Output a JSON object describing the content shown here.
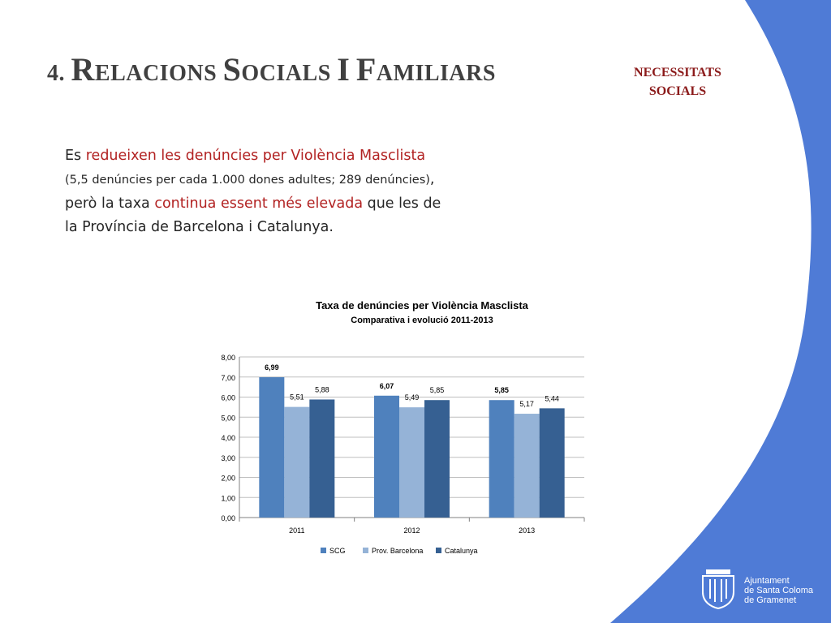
{
  "slide": {
    "title_number": "4.",
    "title_words": [
      {
        "first": "R",
        "rest": "ELACIONS"
      },
      {
        "first": "S",
        "rest": "OCIALS"
      },
      {
        "first": "I",
        "rest": ""
      },
      {
        "first": "F",
        "rest": "AMILIARS"
      }
    ],
    "section_label": [
      "NECESSITATS",
      "SOCIALS"
    ]
  },
  "body": {
    "p1_a": "Es ",
    "p1_b": "redueixen les denúncies per Violència Masclista",
    "p2_a": "(5,5 denúncies per cada 1.000 dones adultes; 289 denúncies)",
    "p2_b": ",",
    "p3_a": "però la taxa ",
    "p3_b": "continua essent més elevada",
    "p3_c": " que les de",
    "p4": "la Província de Barcelona i Catalunya."
  },
  "colors": {
    "blue_band": "#4f7bd6",
    "title_text": "#404040",
    "section_label": "#8b1a1a",
    "highlight": "#b22222"
  },
  "chart_data": {
    "type": "bar",
    "title": "Taxa de denúncies per Violència Masclista",
    "subtitle": "Comparativa i evolució 2011-2013",
    "categories": [
      "2011",
      "2012",
      "2013"
    ],
    "series": [
      {
        "name": "SCG",
        "values": [
          6.99,
          6.07,
          5.85
        ],
        "labels": [
          "6,99",
          "6,07",
          "5,85"
        ],
        "color": "#4f81bd",
        "bold_labels": true
      },
      {
        "name": "Prov. Barcelona",
        "values": [
          5.51,
          5.49,
          5.17
        ],
        "labels": [
          "5,51",
          "5,49",
          "5,17"
        ],
        "color": "#95b3d7",
        "bold_labels": false
      },
      {
        "name": "Catalunya",
        "values": [
          5.88,
          5.85,
          5.44
        ],
        "labels": [
          "5,88",
          "5,85",
          "5,44"
        ],
        "color": "#366092",
        "bold_labels": false
      }
    ],
    "y_ticks": [
      "0,00",
      "1,00",
      "2,00",
      "3,00",
      "4,00",
      "5,00",
      "6,00",
      "7,00",
      "8,00"
    ],
    "ylim": [
      0,
      8
    ],
    "grid": true,
    "legend_position": "bottom"
  },
  "logo": {
    "icon": "coat-of-arms-icon",
    "lines": [
      "Ajuntament",
      "de Santa Coloma",
      "de Gramenet"
    ]
  }
}
